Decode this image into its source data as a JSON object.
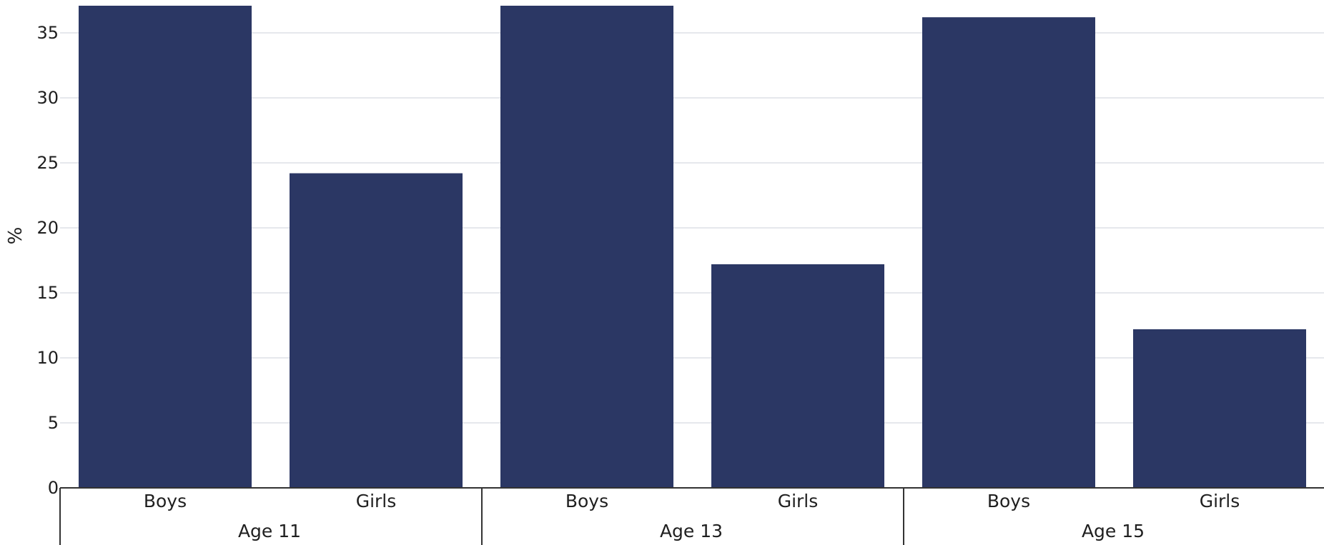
{
  "chart_data": {
    "type": "bar",
    "ylabel": "%",
    "ylim": [
      0,
      37
    ],
    "yticks": [
      0,
      5,
      10,
      15,
      20,
      25,
      30,
      35
    ],
    "grid": true,
    "colors": {
      "bar": "#2b3764"
    },
    "groups": [
      {
        "label": "Age 11",
        "bars": [
          {
            "category": "Boys",
            "value": 37.5
          },
          {
            "category": "Girls",
            "value": 24.2
          }
        ]
      },
      {
        "label": "Age 13",
        "bars": [
          {
            "category": "Boys",
            "value": 37.5
          },
          {
            "category": "Girls",
            "value": 17.2
          }
        ]
      },
      {
        "label": "Age 15",
        "bars": [
          {
            "category": "Boys",
            "value": 36.2
          },
          {
            "category": "Girls",
            "value": 12.2
          }
        ]
      }
    ]
  }
}
